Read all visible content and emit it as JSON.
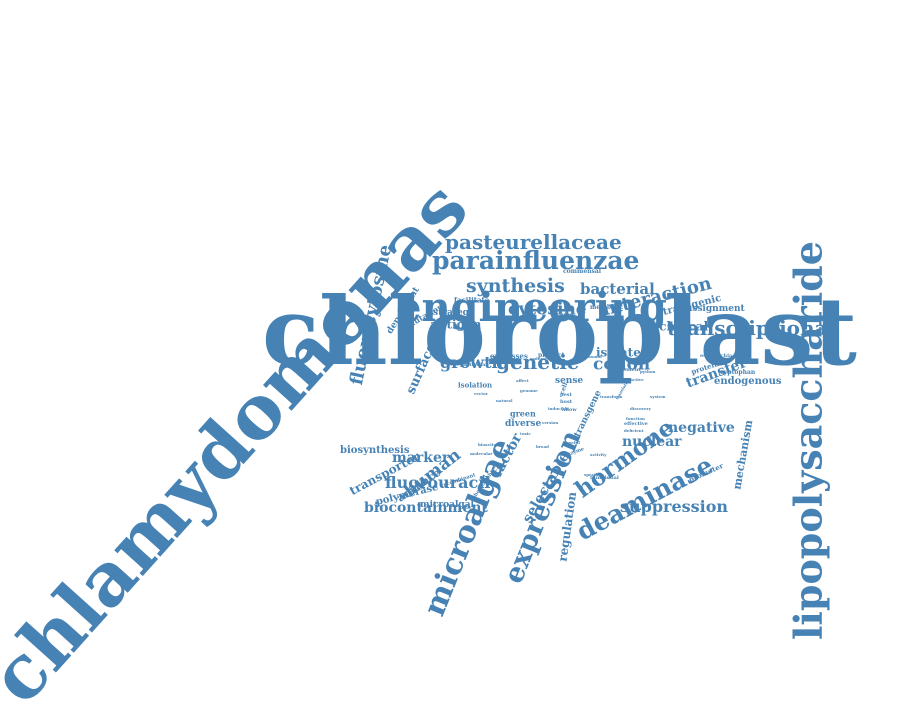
{
  "color": "#4682b4",
  "words": [
    {
      "text": "chloroplast",
      "weight": 1.0
    },
    {
      "text": "chlamydomonas",
      "weight": 0.97
    },
    {
      "text": "lipopolysaccharide",
      "weight": 0.62
    },
    {
      "text": "engineering",
      "weight": 0.45
    },
    {
      "text": "microalgae",
      "weight": 0.42
    },
    {
      "text": "expression",
      "weight": 0.36
    },
    {
      "text": "parainfluenzae",
      "weight": 0.34
    },
    {
      "text": "deaminase",
      "weight": 0.33
    },
    {
      "text": "hormone",
      "weight": 0.3
    },
    {
      "text": "transcriptional",
      "weight": 0.3
    },
    {
      "text": "pasteurellaceae",
      "weight": 0.28
    },
    {
      "text": "fluorocytosine",
      "weight": 0.27
    },
    {
      "text": "genetic",
      "weight": 0.27
    },
    {
      "text": "synthesis",
      "weight": 0.25
    },
    {
      "text": "interaction",
      "weight": 0.25
    },
    {
      "text": "cytosine",
      "weight": 0.22
    },
    {
      "text": "human",
      "weight": 0.22
    },
    {
      "text": "suppression",
      "weight": 0.22
    },
    {
      "text": "growth",
      "weight": 0.21
    },
    {
      "text": "codon",
      "weight": 0.21
    },
    {
      "text": "fluorouracil",
      "weight": 0.2
    },
    {
      "text": "bacterial",
      "weight": 0.18
    },
    {
      "text": "biocontainment",
      "weight": 0.18
    },
    {
      "text": "transfer",
      "weight": 0.17
    },
    {
      "text": "selectable",
      "weight": 0.17
    },
    {
      "text": "factor",
      "weight": 0.17
    },
    {
      "text": "marker",
      "weight": 0.17
    },
    {
      "text": "nuclear",
      "weight": 0.17
    },
    {
      "text": "surface",
      "weight": 0.16
    },
    {
      "text": "negative",
      "weight": 0.16
    },
    {
      "text": "technical",
      "weight": 0.15
    },
    {
      "text": "regulation",
      "weight": 0.15
    },
    {
      "text": "antigen",
      "weight": 0.15
    },
    {
      "text": "transporter",
      "weight": 0.15
    },
    {
      "text": "isolate",
      "weight": 0.15
    },
    {
      "text": "mechanism",
      "weight": 0.14
    },
    {
      "text": "advance",
      "weight": 0.14
    },
    {
      "text": "endogenous",
      "weight": 0.13
    },
    {
      "text": "biosynthesis",
      "weight": 0.12
    },
    {
      "text": "polymerase",
      "weight": 0.12
    },
    {
      "text": "transgenic",
      "weight": 0.12
    },
    {
      "text": "reassignment",
      "weight": 0.11
    },
    {
      "text": "dependent",
      "weight": 0.11
    },
    {
      "text": "strategy",
      "weight": 0.11
    },
    {
      "text": "mutation",
      "weight": 0.11
    },
    {
      "text": "microalgal",
      "weight": 0.11
    },
    {
      "text": "sense",
      "weight": 0.11
    },
    {
      "text": "diverse",
      "weight": 0.11
    },
    {
      "text": "transgene",
      "weight": 0.11
    },
    {
      "text": "isolation",
      "weight": 0.1
    },
    {
      "text": "facilitate",
      "weight": 0.1
    },
    {
      "text": "promoter",
      "weight": 0.1
    },
    {
      "text": "green",
      "weight": 0.1
    },
    {
      "text": "expresses",
      "weight": 0.1
    },
    {
      "text": "product",
      "weight": 0.1
    },
    {
      "text": "protein",
      "weight": 0.1
    },
    {
      "text": "tryptophan",
      "weight": 0.09
    },
    {
      "text": "metabolic",
      "weight": 0.09
    },
    {
      "text": "commensal",
      "weight": 0.09
    },
    {
      "text": "escherichia",
      "weight": 0.09
    },
    {
      "text": "functional",
      "weight": 0.09
    },
    {
      "text": "phototrophic",
      "weight": 0.09
    },
    {
      "text": "recombinant",
      "weight": 0.09
    },
    {
      "text": "particular",
      "weight": 0.09
    },
    {
      "text": "element",
      "weight": 0.09
    },
    {
      "text": "enzyme",
      "weight": 0.09
    },
    {
      "text": "allow",
      "weight": 0.09
    },
    {
      "text": "host",
      "weight": 0.09
    },
    {
      "text": "cell",
      "weight": 0.09
    },
    {
      "text": "pest",
      "weight": 0.09
    },
    {
      "text": "effective",
      "weight": 0.08
    },
    {
      "text": "attractive",
      "weight": 0.08
    },
    {
      "text": "discovery",
      "weight": 0.08
    },
    {
      "text": "function",
      "weight": 0.08
    },
    {
      "text": "bioactive",
      "weight": 0.08
    },
    {
      "text": "genome",
      "weight": 0.08
    },
    {
      "text": "specific",
      "weight": 0.08
    },
    {
      "text": "version",
      "weight": 0.08
    },
    {
      "text": "python",
      "weight": 0.08
    },
    {
      "text": "deficient",
      "weight": 0.08
    },
    {
      "text": "translation",
      "weight": 0.08
    },
    {
      "text": "affect",
      "weight": 0.08
    },
    {
      "text": "sodium",
      "weight": 0.08
    },
    {
      "text": "result",
      "weight": 0.08
    },
    {
      "text": "plasmid",
      "weight": 0.08
    },
    {
      "text": "inducible",
      "weight": 0.08
    },
    {
      "text": "vector",
      "weight": 0.08
    },
    {
      "text": "toxic",
      "weight": 0.08
    },
    {
      "text": "broad",
      "weight": 0.08
    },
    {
      "text": "transform",
      "weight": 0.08
    },
    {
      "text": "molecular",
      "weight": 0.08
    },
    {
      "text": "useful",
      "weight": 0.08
    },
    {
      "text": "activity",
      "weight": 0.08
    },
    {
      "text": "system",
      "weight": 0.08
    },
    {
      "text": "natural",
      "weight": 0.08
    }
  ]
}
